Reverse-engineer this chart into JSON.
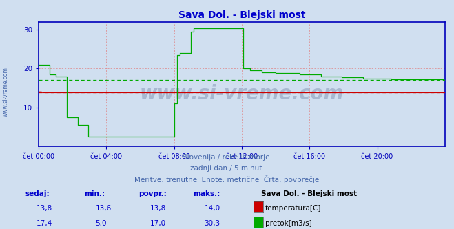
{
  "title": "Sava Dol. - Blejski most",
  "title_color": "#0000cc",
  "bg_color": "#d0dff0",
  "plot_bg_color": "#d0dff0",
  "grid_color": "#e08080",
  "axis_color": "#0000bb",
  "watermark": "www.si-vreme.com",
  "watermark_color": "#a8b8d0",
  "subtitle_lines": [
    "Slovenija / reke in morje.",
    "zadnji dan / 5 minut.",
    "Meritve: trenutne  Enote: metrične  Črta: povprečje"
  ],
  "subtitle_color": "#4466aa",
  "xlim": [
    0,
    288
  ],
  "ylim": [
    0,
    32
  ],
  "yticks": [
    10,
    20,
    30
  ],
  "xtick_labels": [
    "čet 00:00",
    "čet 04:00",
    "čet 08:00",
    "čet 12:00",
    "čet 16:00",
    "čet 20:00"
  ],
  "xtick_positions": [
    0,
    48,
    96,
    144,
    192,
    240
  ],
  "temp_color": "#cc0000",
  "flow_color": "#00aa00",
  "temp_avg": 13.8,
  "flow_avg": 17.0,
  "legend_title": "Sava Dol. - Blejski most",
  "table_headers": [
    "sedaj:",
    "min.:",
    "povpr.:",
    "maks.:"
  ],
  "table_row1": [
    "13,8",
    "13,6",
    "13,8",
    "14,0"
  ],
  "table_row2": [
    "17,4",
    "5,0",
    "17,0",
    "30,3"
  ],
  "table_label1": "temperatura[C]",
  "table_label2": "pretok[m3/s]",
  "sidebar_text": "www.si-vreme.com",
  "sidebar_color": "#4466aa",
  "arrow_color": "#cc0000"
}
